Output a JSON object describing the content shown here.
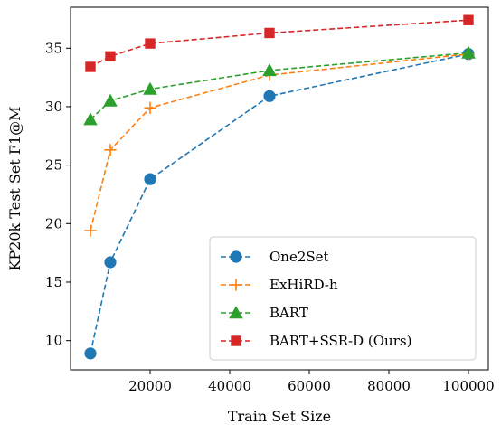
{
  "chart_data": {
    "type": "line",
    "title": "",
    "xlabel": "Train Set Size",
    "ylabel": "KP20k Test Set F1@M",
    "x": [
      5000,
      10000,
      20000,
      50000,
      100000
    ],
    "xlim": [
      0,
      105000
    ],
    "ylim": [
      7.5,
      38.5
    ],
    "xticks": [
      20000,
      40000,
      60000,
      80000,
      100000
    ],
    "yticks": [
      10,
      15,
      20,
      25,
      30,
      35
    ],
    "xtick_labels": [
      "20000",
      "40000",
      "60000",
      "80000",
      "100000"
    ],
    "ytick_labels": [
      "10",
      "15",
      "20",
      "25",
      "30",
      "35"
    ],
    "grid": false,
    "legend_position": "lower-right",
    "series": [
      {
        "name": "One2Set",
        "color": "#1f77b4",
        "marker": "circle",
        "linestyle": "dashed",
        "values": [
          8.9,
          16.7,
          23.8,
          30.9,
          34.5
        ]
      },
      {
        "name": "ExHiRD-h",
        "color": "#ff7f0e",
        "marker": "plus",
        "linestyle": "dashed",
        "values": [
          19.4,
          26.3,
          29.9,
          32.7,
          34.5
        ]
      },
      {
        "name": "BART",
        "color": "#2ca02c",
        "marker": "triangle",
        "linestyle": "dashed",
        "values": [
          28.9,
          30.5,
          31.5,
          33.1,
          34.6
        ]
      },
      {
        "name": "BART+SSR-D (Ours)",
        "color": "#d62728",
        "marker": "square",
        "linestyle": "dashed",
        "values": [
          33.4,
          34.3,
          35.4,
          36.3,
          37.4
        ]
      }
    ]
  }
}
